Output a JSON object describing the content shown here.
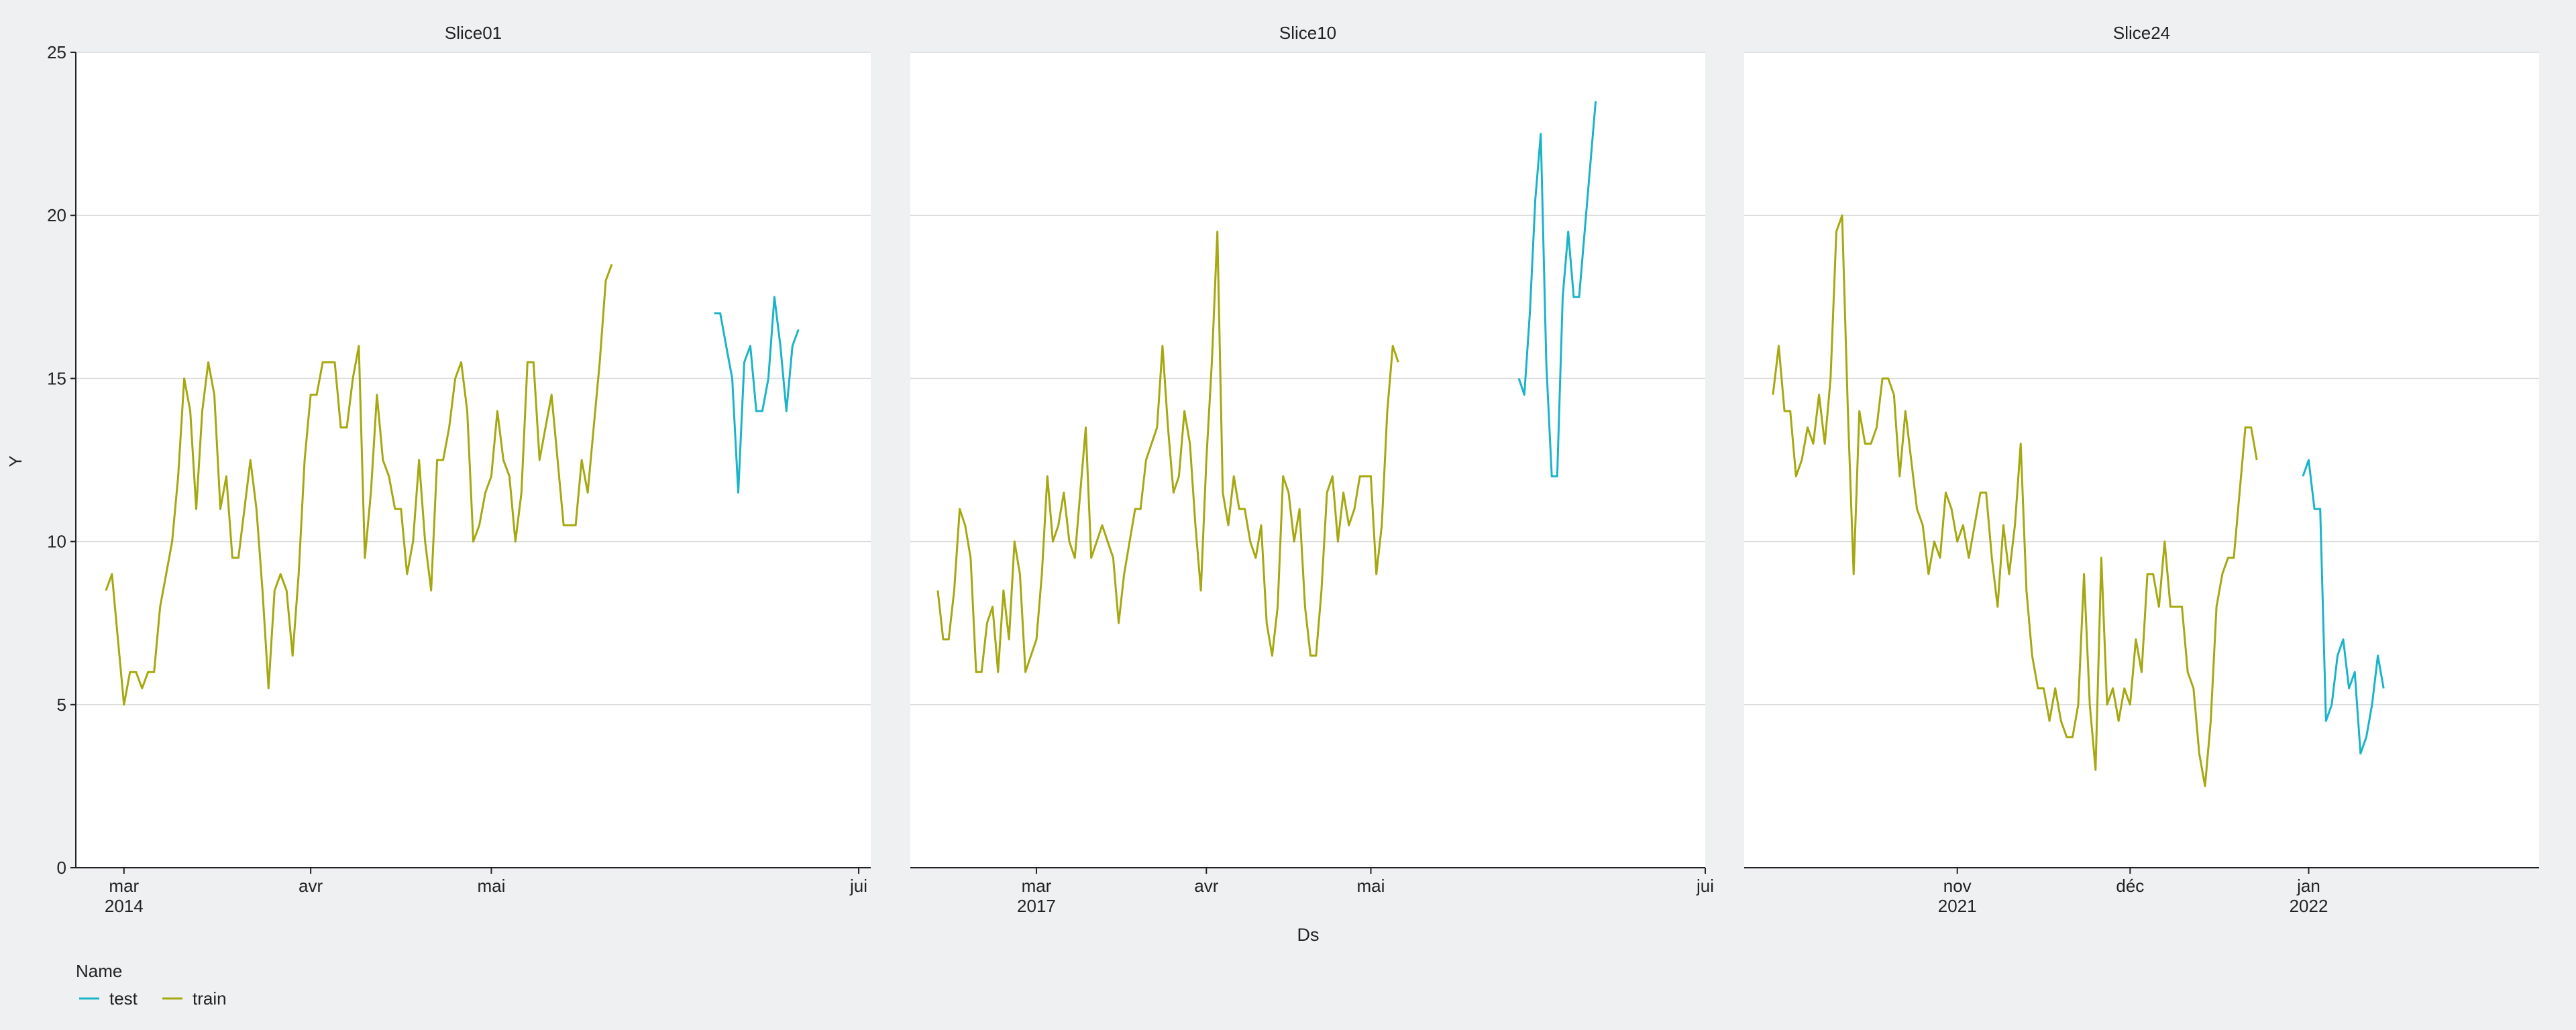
{
  "chart_data": {
    "type": "line",
    "ylabel": "Y",
    "xlabel": "Ds",
    "ylim": [
      0,
      25
    ],
    "yticks": [
      0,
      5,
      10,
      15,
      20,
      25
    ],
    "grid": "horizontal",
    "legend": {
      "title": "Name",
      "position": "bottom-left",
      "entries": [
        {
          "label": "test",
          "color": "#1ab4c8"
        },
        {
          "label": "train",
          "color": "#a5a80f"
        }
      ]
    },
    "panels": [
      {
        "title": "Slice01",
        "xlim": [
          "2014-02-21",
          "2014-07-03"
        ],
        "xticks": [
          {
            "date": "2014-03-01",
            "label1": "mar",
            "label2": "2014"
          },
          {
            "date": "2014-04-01",
            "label1": "avr",
            "label2": ""
          },
          {
            "date": "2014-05-01",
            "label1": "mai",
            "label2": ""
          },
          {
            "date": "2014-07-01",
            "label1": "jui",
            "label2": ""
          }
        ],
        "series": [
          {
            "name": "train",
            "x_start": "2014-02-26",
            "step_days": 1,
            "values": [
              8.5,
              9,
              7,
              5,
              6,
              6,
              5.5,
              6,
              6,
              8,
              9,
              10,
              12,
              15,
              14,
              11,
              14,
              15.5,
              14.5,
              11,
              12,
              9.5,
              9.5,
              11,
              12.5,
              11,
              8.5,
              5.5,
              8.5,
              9,
              8.5,
              6.5,
              9,
              12.5,
              14.5,
              14.5,
              15.5,
              15.5,
              15.5,
              13.5,
              13.5,
              15,
              16,
              9.5,
              11.5,
              14.5,
              12.5,
              12,
              11,
              11,
              9,
              10,
              12.5,
              10,
              8.5,
              12.5,
              12.5,
              13.5,
              15,
              15.5,
              14,
              10,
              10.5,
              11.5,
              12,
              14,
              12.5,
              12,
              10,
              11.5,
              15.5,
              15.5,
              12.5,
              13.5,
              14.5,
              12.5,
              10.5,
              10.5,
              10.5,
              12.5,
              11.5,
              13.5,
              15.5,
              18,
              18.5
            ]
          },
          {
            "name": "test",
            "x_start": "2014-06-07",
            "step_days": 1,
            "values": [
              17,
              17,
              16,
              15,
              11.5,
              15.5,
              16,
              14,
              14,
              15,
              17.5,
              16,
              14,
              16,
              16.5
            ]
          }
        ]
      },
      {
        "title": "Slice10",
        "xlim": [
          "2017-02-06",
          "2017-07-01"
        ],
        "xticks": [
          {
            "date": "2017-03-01",
            "label1": "mar",
            "label2": "2017"
          },
          {
            "date": "2017-04-01",
            "label1": "avr",
            "label2": ""
          },
          {
            "date": "2017-05-01",
            "label1": "mai",
            "label2": ""
          },
          {
            "date": "2017-07-01",
            "label1": "jui",
            "label2": ""
          }
        ],
        "series": [
          {
            "name": "train",
            "x_start": "2017-02-11",
            "step_days": 1,
            "values": [
              8.5,
              7,
              7,
              8.5,
              11,
              10.5,
              9.5,
              6,
              6,
              7.5,
              8,
              6,
              8.5,
              7,
              10,
              9,
              6,
              6.5,
              7,
              9,
              12,
              10,
              10.5,
              11.5,
              10,
              9.5,
              11.5,
              13.5,
              9.5,
              10,
              10.5,
              10,
              9.5,
              7.5,
              9,
              10,
              11,
              11,
              12.5,
              13,
              13.5,
              16,
              13.5,
              11.5,
              12,
              14,
              13,
              10.5,
              8.5,
              12.5,
              15.5,
              19.5,
              11.5,
              10.5,
              12,
              11,
              11,
              10,
              9.5,
              10.5,
              7.5,
              6.5,
              8,
              12,
              11.5,
              10,
              11,
              8,
              6.5,
              6.5,
              8.5,
              11.5,
              12,
              10,
              11.5,
              10.5,
              11,
              12,
              12,
              12,
              9,
              10.5,
              14,
              16,
              15.5
            ]
          },
          {
            "name": "test",
            "x_start": "2017-05-28",
            "step_days": 1,
            "values": [
              15,
              14.5,
              17,
              20.5,
              22.5,
              15.5,
              12,
              12,
              17.5,
              19.5,
              17.5,
              17.5,
              19.5,
              21.5,
              23.5
            ]
          }
        ]
      },
      {
        "title": "Slice24",
        "xlim": [
          "2021-09-25",
          "2022-02-10"
        ],
        "xticks": [
          {
            "date": "2021-11-01",
            "label1": "nov",
            "label2": "2021"
          },
          {
            "date": "2021-12-01",
            "label1": "déc",
            "label2": ""
          },
          {
            "date": "2022-01-01",
            "label1": "jan",
            "label2": "2022"
          }
        ],
        "series": [
          {
            "name": "train",
            "x_start": "2021-09-30",
            "step_days": 1,
            "values": [
              14.5,
              16,
              14,
              14,
              12,
              12.5,
              13.5,
              13,
              14.5,
              13,
              15,
              19.5,
              20,
              14,
              9,
              14,
              13,
              13,
              13.5,
              15,
              15,
              14.5,
              12,
              14,
              12.5,
              11,
              10.5,
              9,
              10,
              9.5,
              11.5,
              11,
              10,
              10.5,
              9.5,
              10.5,
              11.5,
              11.5,
              9.5,
              8,
              10.5,
              9,
              10.5,
              13,
              8.5,
              6.5,
              5.5,
              5.5,
              4.5,
              5.5,
              4.5,
              4,
              4,
              5,
              9,
              5,
              3,
              9.5,
              5,
              5.5,
              4.5,
              5.5,
              5,
              7,
              6,
              9,
              9,
              8,
              10,
              8,
              8,
              8,
              6,
              5.5,
              3.5,
              2.5,
              4.5,
              8,
              9,
              9.5,
              9.5,
              11.5,
              13.5,
              13.5,
              12.5
            ]
          },
          {
            "name": "test",
            "x_start": "2021-12-31",
            "step_days": 1,
            "values": [
              12,
              12.5,
              11,
              11,
              4.5,
              5,
              6.5,
              7,
              5.5,
              6,
              3.5,
              4,
              5,
              6.5,
              5.5
            ]
          }
        ]
      }
    ]
  }
}
